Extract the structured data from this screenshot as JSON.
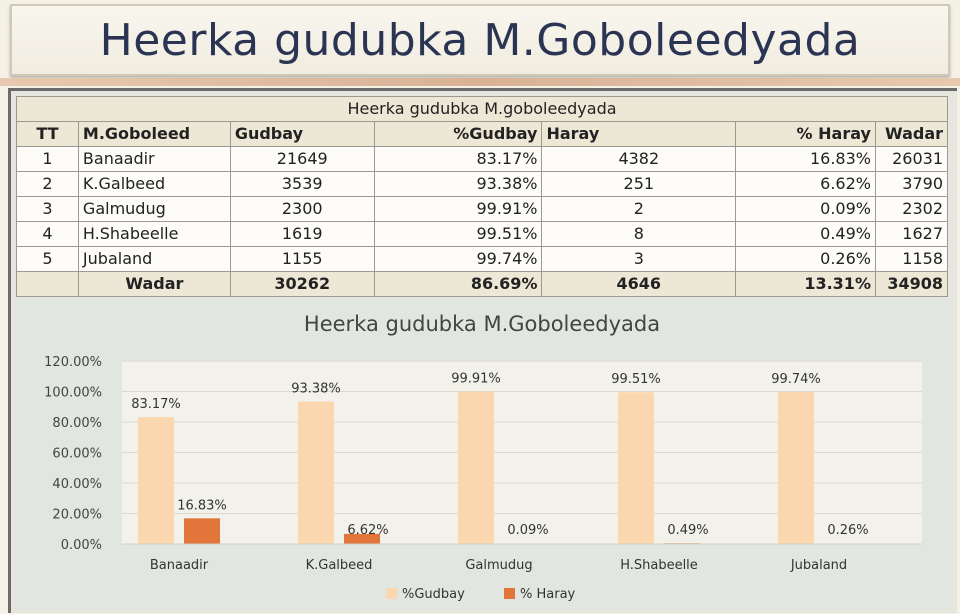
{
  "slide": {
    "title": "Heerka gudubka M.Goboleedyada"
  },
  "table": {
    "caption": "Heerka gudubka M.goboleedyada",
    "headers": [
      "TT",
      "M.Goboleed",
      "Gudbay",
      "%Gudbay",
      "Haray",
      "% Haray",
      "Wadar"
    ],
    "rows": [
      [
        "1",
        "Banaadir",
        "21649",
        "83.17%",
        "4382",
        "16.83%",
        "26031"
      ],
      [
        "2",
        "K.Galbeed",
        "3539",
        "93.38%",
        "251",
        "6.62%",
        "3790"
      ],
      [
        "3",
        "Galmudug",
        "2300",
        "99.91%",
        "2",
        "0.09%",
        "2302"
      ],
      [
        "4",
        "H.Shabeelle",
        "1619",
        "99.51%",
        "8",
        "0.49%",
        "1627"
      ],
      [
        "5",
        "Jubaland",
        "1155",
        "99.74%",
        "3",
        "0.26%",
        "1158"
      ]
    ],
    "total": [
      "",
      "Wadar",
      "30262",
      "86.69%",
      "4646",
      "13.31%",
      "34908"
    ]
  },
  "colors": {
    "gudbay": "#fad7ae",
    "haray": "#e2763a"
  },
  "chart_data": {
    "type": "bar",
    "title": "Heerka gudubka M.Goboleedyada",
    "categories": [
      "Banaadir",
      "K.Galbeed",
      "Galmudug",
      "H.Shabeelle",
      "Jubaland"
    ],
    "series": [
      {
        "name": "%Gudbay",
        "values": [
          83.17,
          93.38,
          99.91,
          99.51,
          99.74
        ],
        "labels": [
          "83.17%",
          "93.38%",
          "99.91%",
          "99.51%",
          "99.74%"
        ]
      },
      {
        "name": "% Haray",
        "values": [
          16.83,
          6.62,
          0.09,
          0.49,
          0.26
        ],
        "labels": [
          "16.83%",
          "6.62%",
          "0.09%",
          "0.49%",
          "0.26%"
        ]
      }
    ],
    "ylim": [
      0,
      120
    ],
    "yticks": [
      "0.00%",
      "20.00%",
      "40.00%",
      "60.00%",
      "80.00%",
      "100.00%",
      "120.00%"
    ],
    "grid": true,
    "legend": "bottom"
  }
}
